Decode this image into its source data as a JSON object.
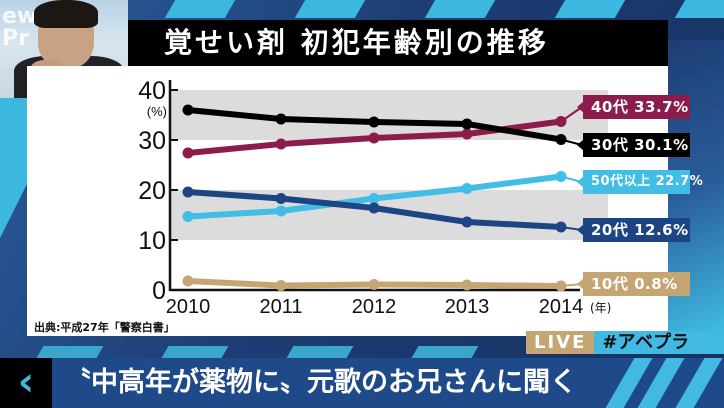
{
  "broadcast": {
    "title": "覚せい剤 初犯年齢別の推移",
    "source": "出典:平成27年「警察白書」",
    "live_label": "LIVE",
    "hashtag": "#アベプラ",
    "caption": "〝中高年が薬物に〟元歌のお兄さんに聞く",
    "back_icon": "chevron-left-icon",
    "video_logo": "ew\nPr",
    "colors": {
      "title_bg": "#000000",
      "panel_bg": "#ffffff",
      "accent_cyan": "#41b9e3",
      "navy": "#1f4a8a",
      "live_tan": "#c5a572"
    }
  },
  "chart_data": {
    "type": "line",
    "title": "覚せい剤 初犯年齢別の推移",
    "xlabel": "(年)",
    "ylabel": "(%)",
    "categories": [
      "2010",
      "2011",
      "2012",
      "2013",
      "2014"
    ],
    "yticks": [
      "0",
      "10",
      "20",
      "30",
      "40"
    ],
    "ylim": [
      0,
      40
    ],
    "grid": "alternating gray bands 10-20 and 30-40",
    "legend_position": "right, end-of-line labels",
    "series": [
      {
        "name": "40代",
        "label": "40代 33.7%",
        "color": "#8c1c4c",
        "values": [
          27.4,
          29.2,
          30.4,
          31.2,
          33.7
        ]
      },
      {
        "name": "30代",
        "label": "30代 30.1%",
        "color": "#000000",
        "values": [
          36.0,
          34.2,
          33.6,
          33.2,
          30.1
        ]
      },
      {
        "name": "50代以上",
        "label": "50代以上 22.7%",
        "color": "#41bde6",
        "values": [
          14.7,
          15.8,
          18.3,
          20.3,
          22.7
        ]
      },
      {
        "name": "20代",
        "label": "20代 12.6%",
        "color": "#1d4584",
        "values": [
          19.6,
          18.3,
          16.4,
          13.6,
          12.6
        ]
      },
      {
        "name": "10代",
        "label": "10代  0.8%",
        "color": "#c5a572",
        "values": [
          1.8,
          0.9,
          1.1,
          1.0,
          0.8
        ]
      }
    ],
    "source": "出典:平成27年「警察白書」"
  }
}
